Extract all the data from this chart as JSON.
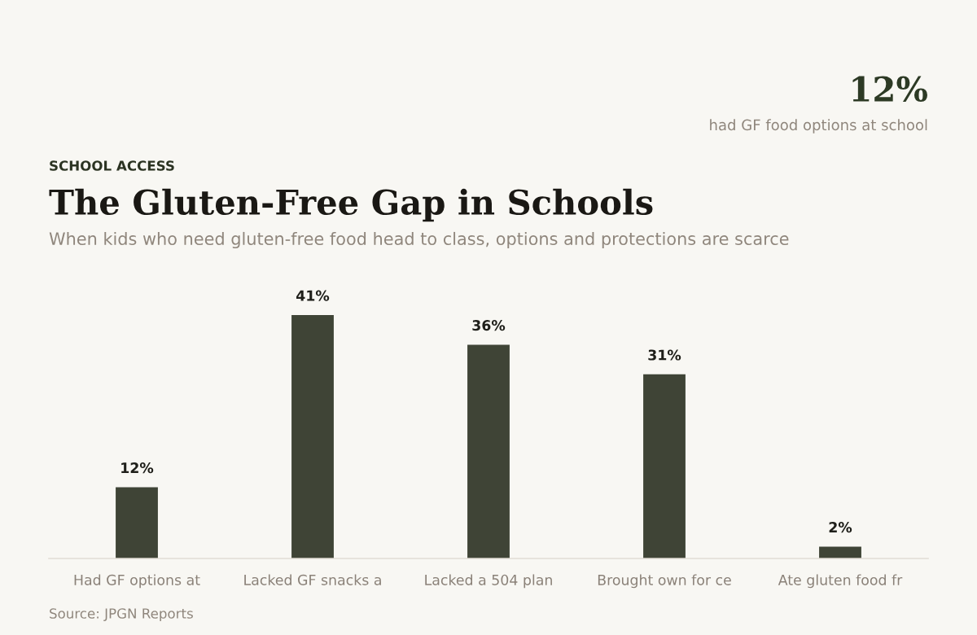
{
  "chart_data": {
    "type": "bar",
    "title": "The Gluten-Free Gap in Schools",
    "subtitle": "When kids who need gluten-free food head to class, options and protections are scarce",
    "categories": [
      "Had GF options at",
      "Lacked GF snacks a",
      "Lacked a 504 plan",
      "Brought own for ce",
      "Ate gluten food fr"
    ],
    "values": [
      12,
      41,
      36,
      31,
      2
    ],
    "color": "#3f4436",
    "data_labels": true,
    "value_labels": [
      "12%",
      "41%",
      "36%",
      "31%",
      "2%"
    ],
    "tick_labels": "x",
    "annotations": [
      "SCHOOL ACCESS",
      "12%",
      "had GF food options at school",
      "Source: JPGN Reports"
    ]
  }
}
